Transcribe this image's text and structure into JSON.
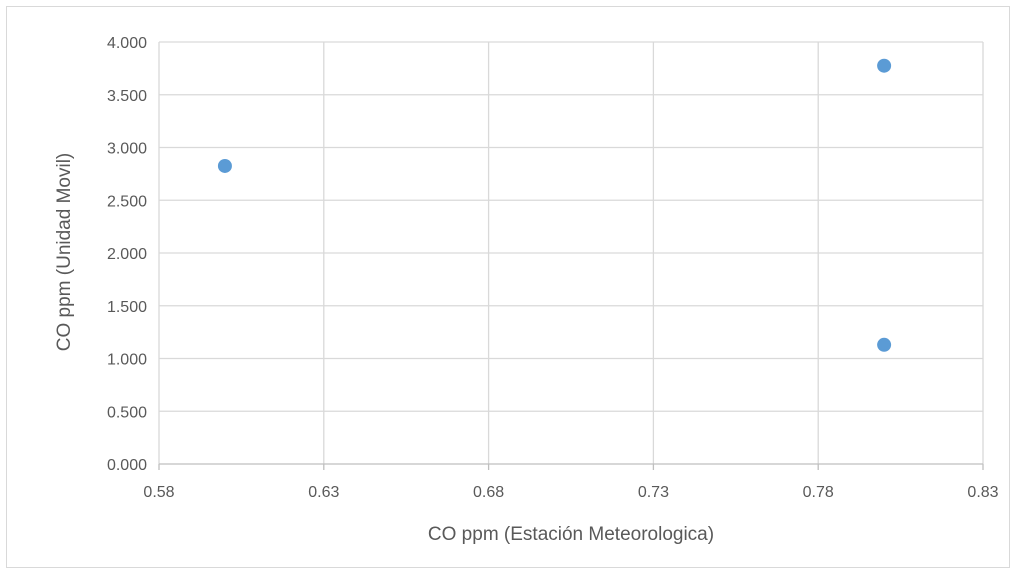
{
  "chart_data": {
    "type": "scatter",
    "xlabel": "CO ppm (Estación Meteorologica)",
    "ylabel": "CO ppm (Unidad Movil)",
    "xlim": [
      0.58,
      0.83
    ],
    "ylim": [
      0.0,
      4.0
    ],
    "x_ticks": [
      "0.58",
      "0.63",
      "0.68",
      "0.73",
      "0.78",
      "0.83"
    ],
    "y_ticks": [
      "0.000",
      "0.500",
      "1.000",
      "1.500",
      "2.000",
      "2.500",
      "3.000",
      "3.500",
      "4.000"
    ],
    "grid": true,
    "legend": "none",
    "marker_color": "#5b9bd5",
    "series": [
      {
        "x": [
          0.6,
          0.8,
          0.8
        ],
        "y": [
          2.825,
          3.775,
          1.13
        ]
      }
    ]
  }
}
